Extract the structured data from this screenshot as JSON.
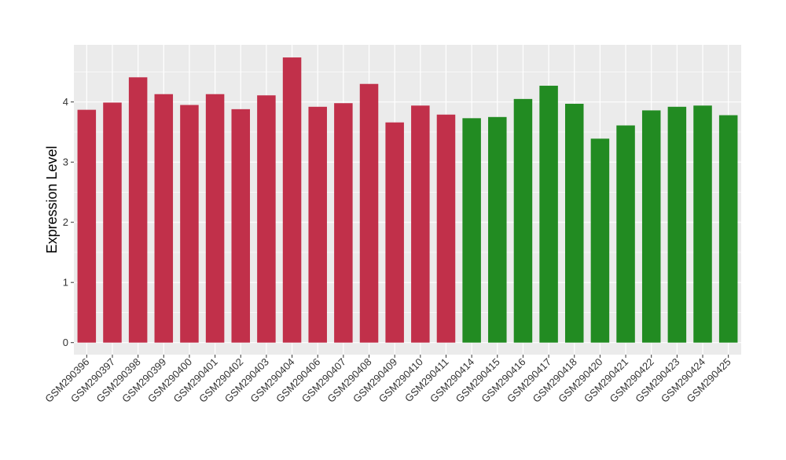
{
  "chart_data": {
    "type": "bar",
    "title": "",
    "xlabel": "",
    "ylabel": "Expression Level",
    "ylim": [
      -0.2,
      4.95
    ],
    "yticks": [
      0,
      1,
      2,
      3,
      4
    ],
    "grid": true,
    "categories": [
      "GSM290396",
      "GSM290397",
      "GSM290398",
      "GSM290399",
      "GSM290400",
      "GSM290401",
      "GSM290402",
      "GSM290403",
      "GSM290404",
      "GSM290406",
      "GSM290407",
      "GSM290408",
      "GSM290409",
      "GSM290410",
      "GSM290411",
      "GSM290414",
      "GSM290415",
      "GSM290416",
      "GSM290417",
      "GSM290418",
      "GSM290420",
      "GSM290421",
      "GSM290422",
      "GSM290423",
      "GSM290424",
      "GSM290425"
    ],
    "values": [
      3.87,
      3.99,
      4.41,
      4.13,
      3.95,
      4.13,
      3.88,
      4.11,
      4.74,
      3.92,
      3.98,
      4.3,
      3.66,
      3.94,
      3.79,
      3.73,
      3.75,
      4.05,
      4.27,
      3.97,
      3.39,
      3.61,
      3.86,
      3.92,
      3.94,
      3.78
    ],
    "groups": [
      0,
      0,
      0,
      0,
      0,
      0,
      0,
      0,
      0,
      0,
      0,
      0,
      0,
      0,
      0,
      1,
      1,
      1,
      1,
      1,
      1,
      1,
      1,
      1,
      1,
      1
    ],
    "group_colors": [
      "#C1304A",
      "#228B22"
    ],
    "panel_background": "#EBEBEB",
    "gridline_color": "#FFFFFF"
  }
}
